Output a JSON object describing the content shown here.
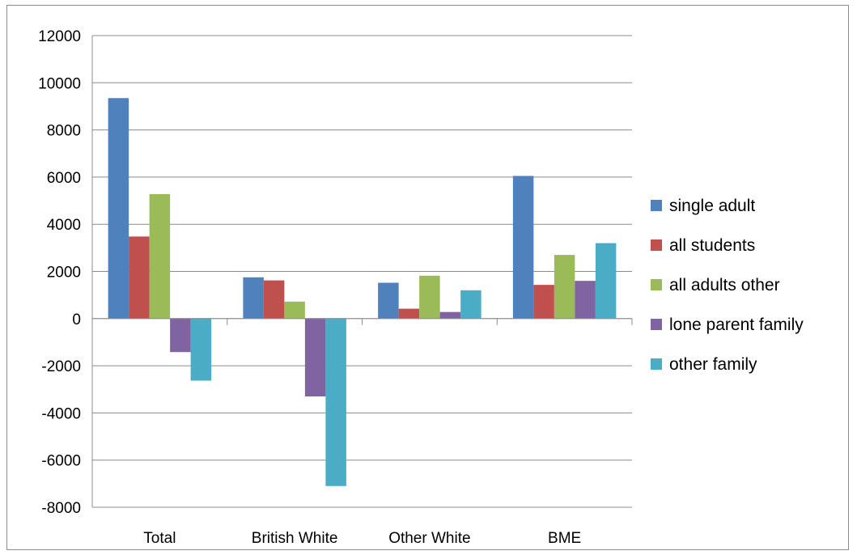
{
  "chart_data": {
    "type": "bar",
    "categories": [
      "Total",
      "British White",
      "Other White",
      "BME"
    ],
    "series": [
      {
        "name": "single adult",
        "color": "#4F81BD",
        "values": [
          9350,
          1750,
          1520,
          6050
        ]
      },
      {
        "name": "all students",
        "color": "#C0504D",
        "values": [
          3480,
          1620,
          420,
          1430
        ]
      },
      {
        "name": "all adults other",
        "color": "#9BBB59",
        "values": [
          5280,
          720,
          1820,
          2700
        ]
      },
      {
        "name": "lone parent family",
        "color": "#8064A2",
        "values": [
          -1420,
          -3300,
          280,
          1600
        ]
      },
      {
        "name": "other family",
        "color": "#4BACC6",
        "values": [
          -2630,
          -7100,
          1200,
          3200
        ]
      }
    ],
    "ylim": [
      -8000,
      12000
    ],
    "yticks": [
      12000,
      10000,
      8000,
      6000,
      4000,
      2000,
      0,
      -2000,
      -4000,
      -6000,
      -8000
    ],
    "ytick_labels": [
      "12000",
      "10000",
      "8000",
      "6000",
      "4000",
      "2000",
      "0",
      "-2000",
      "-4000",
      "-6000",
      "-8000"
    ],
    "grid": true,
    "legend_position": "right"
  }
}
